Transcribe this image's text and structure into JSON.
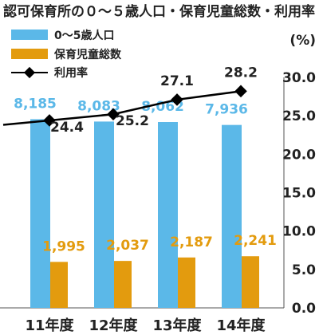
{
  "chart_data": {
    "type": "bar",
    "title": "認可保育所の０～５歳人口・保育児童総数・利用率",
    "categories": [
      "11年度",
      "12年度",
      "13年度",
      "14年度"
    ],
    "series": [
      {
        "name": "0～5歳人口",
        "kind": "bar",
        "values": [
          8185,
          8083,
          8062,
          7936
        ],
        "labels": [
          "8,185",
          "8,083",
          "8,062",
          "7,936"
        ],
        "color": "#5bb8e8"
      },
      {
        "name": "保育児童総数",
        "kind": "bar",
        "values": [
          1995,
          2037,
          2187,
          2241
        ],
        "labels": [
          "1,995",
          "2,037",
          "2,187",
          "2,241"
        ],
        "color": "#e39b0e"
      },
      {
        "name": "利用率",
        "kind": "line",
        "axis": "right",
        "values": [
          24.4,
          25.2,
          27.1,
          28.2
        ],
        "labels": [
          "24.4",
          "25.2",
          "27.1",
          "28.2"
        ],
        "color": "#000000"
      }
    ],
    "right_axis": {
      "unit": "(%)",
      "ylim": [
        0,
        30
      ],
      "ticks": [
        "30.0",
        "25.0",
        "20.0",
        "15.0",
        "10.0",
        "5.0",
        "0.0"
      ]
    },
    "legend_position": "top-left",
    "grid": false
  }
}
